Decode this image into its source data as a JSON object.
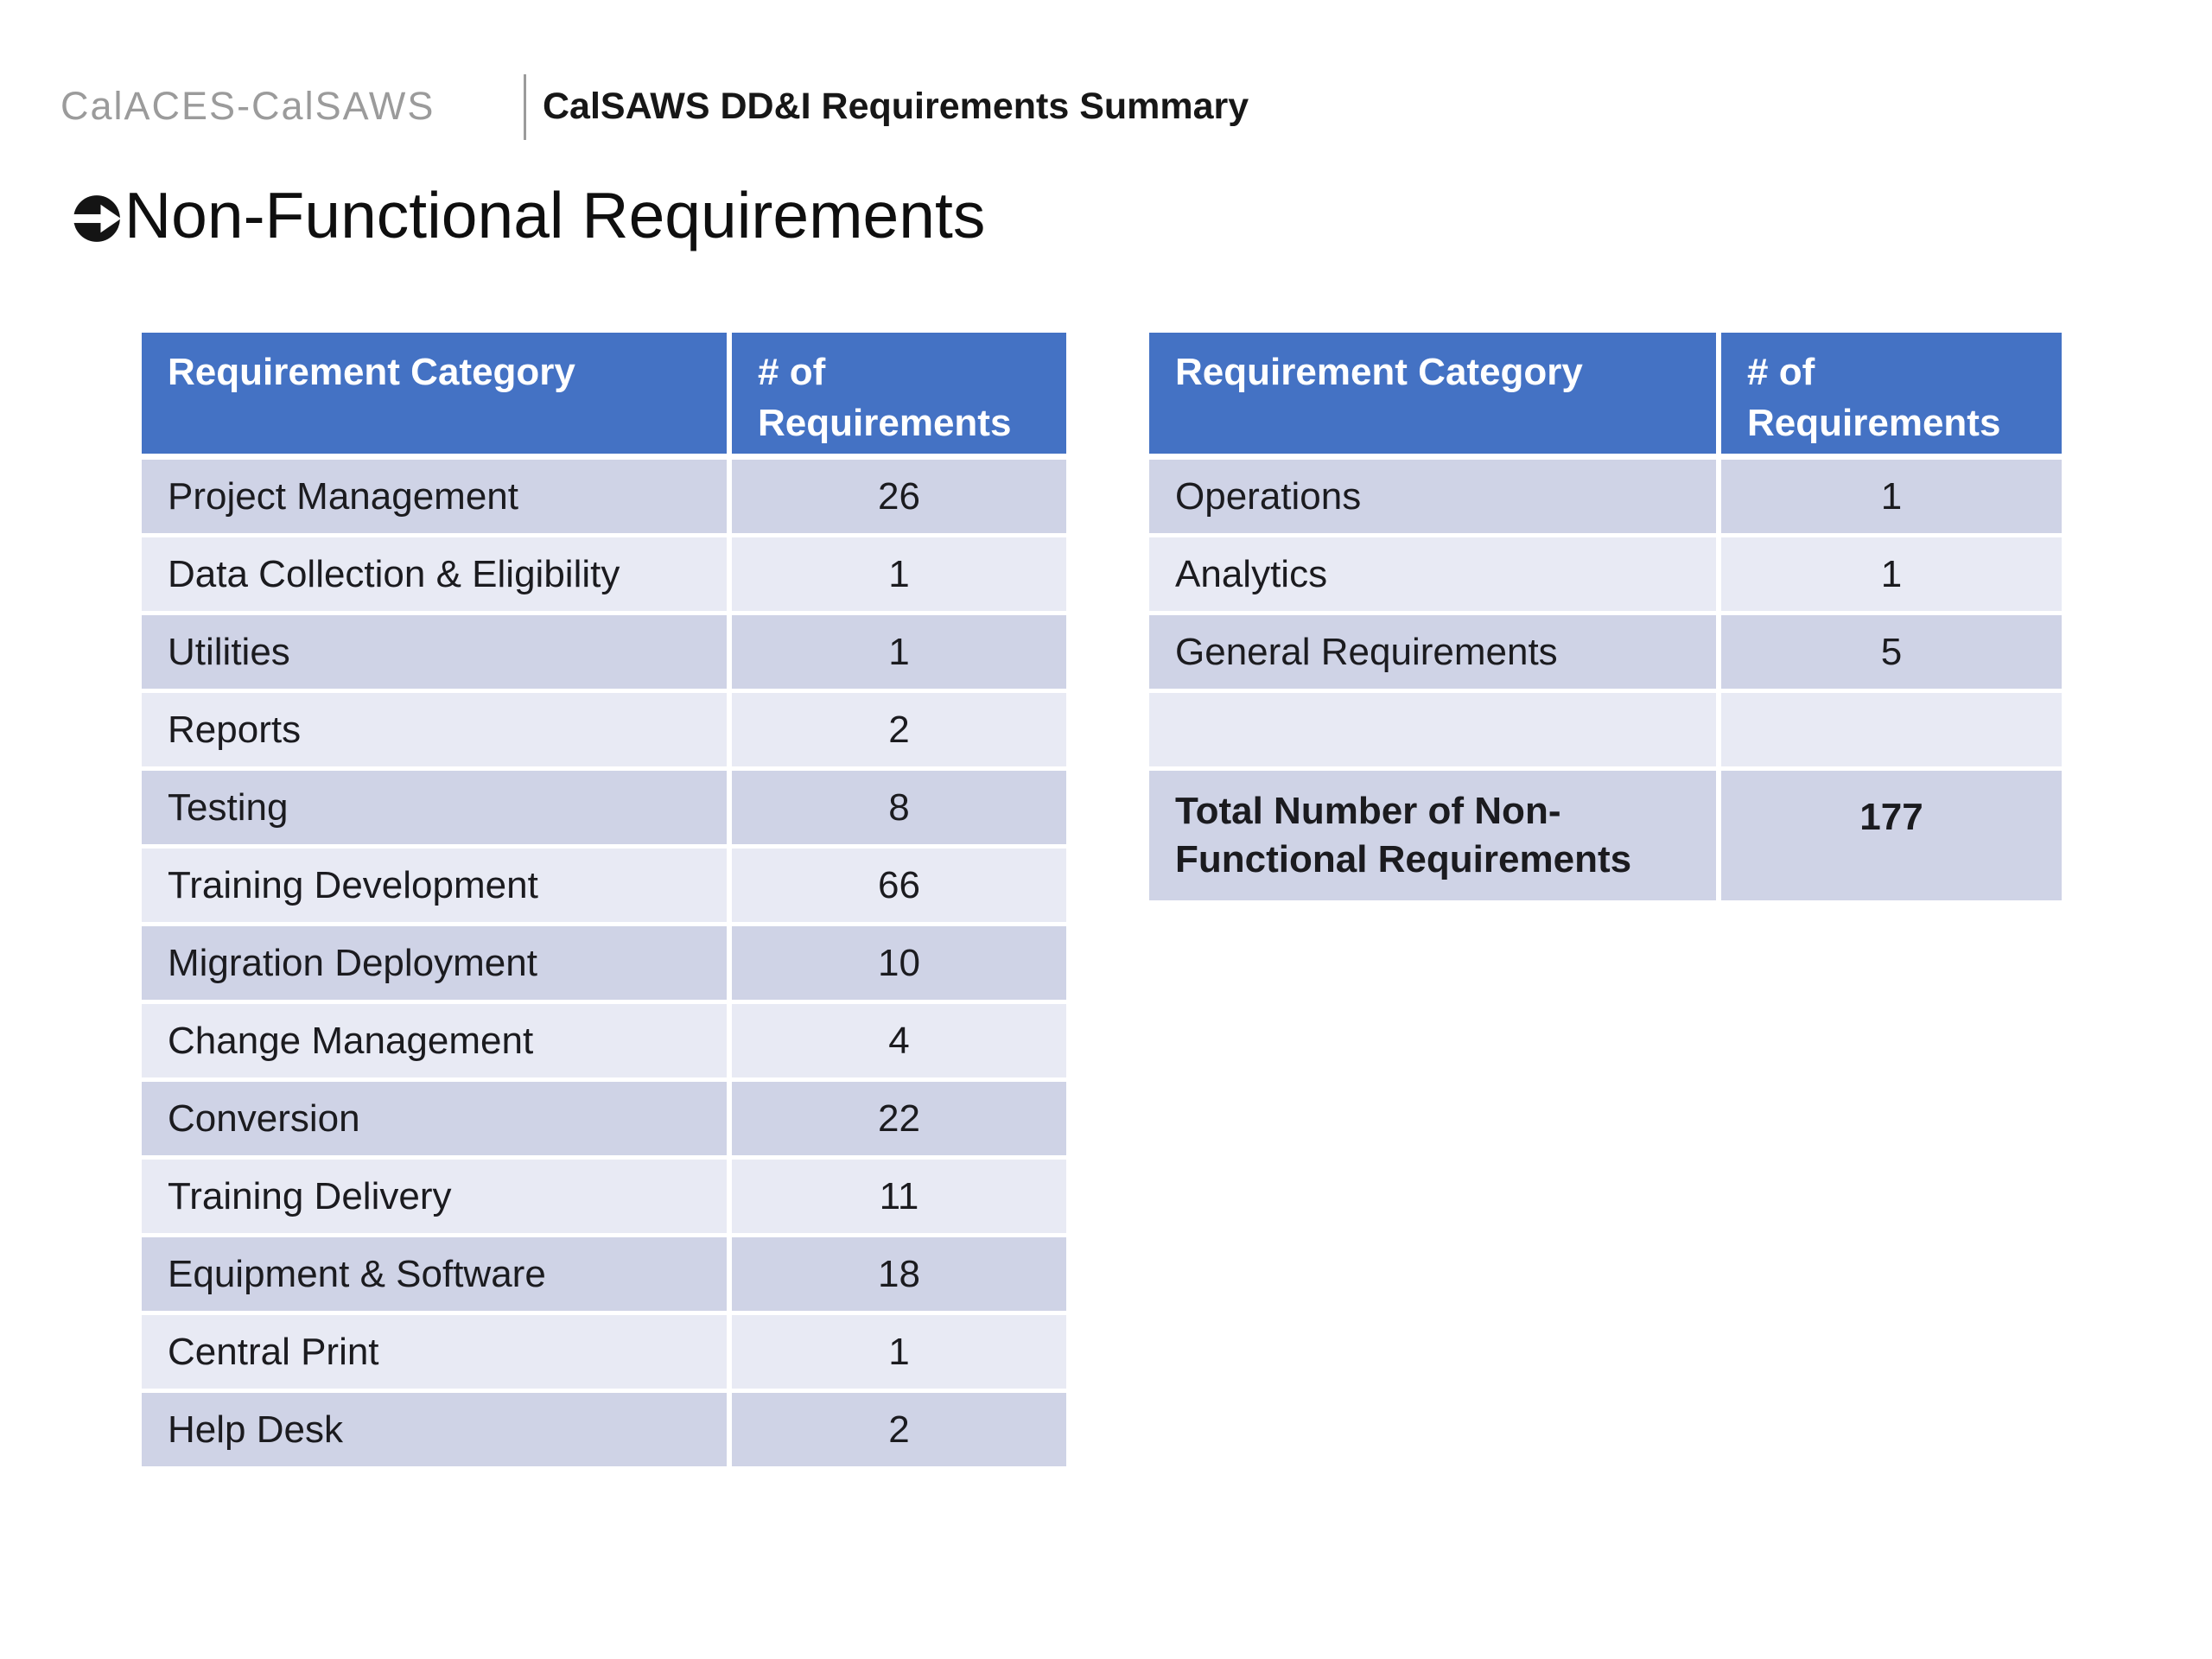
{
  "header": {
    "brand": "CalACES-CalSAWS",
    "title": "CalSAWS DD&I Requirements Summary"
  },
  "slide": {
    "title": "Non-Functional Requirements",
    "title_icon": "circled-right-arrow"
  },
  "columns": {
    "category": "Requirement Category",
    "count": "# of Requirements"
  },
  "left_table": {
    "rows": [
      {
        "category": "Project Management",
        "count": "26"
      },
      {
        "category": "Data Collection & Eligibility",
        "count": "1"
      },
      {
        "category": "Utilities",
        "count": "1"
      },
      {
        "category": "Reports",
        "count": "2"
      },
      {
        "category": "Testing",
        "count": "8"
      },
      {
        "category": "Training Development",
        "count": "66"
      },
      {
        "category": "Migration Deployment",
        "count": "10"
      },
      {
        "category": "Change Management",
        "count": "4"
      },
      {
        "category": "Conversion",
        "count": "22"
      },
      {
        "category": "Training Delivery",
        "count": "11"
      },
      {
        "category": "Equipment & Software",
        "count": "18"
      },
      {
        "category": "Central Print",
        "count": "1"
      },
      {
        "category": "Help Desk",
        "count": "2"
      }
    ]
  },
  "right_table": {
    "rows": [
      {
        "category": "Operations",
        "count": "1"
      },
      {
        "category": "Analytics",
        "count": "1"
      },
      {
        "category": "General Requirements",
        "count": "5"
      },
      {
        "category": "",
        "count": "",
        "empty": true
      },
      {
        "category": "Total Number of Non-Functional Requirements",
        "count": "177",
        "total": true
      }
    ]
  },
  "colors": {
    "header_fill": "#4472c4",
    "band_dark": "#cfd3e6",
    "band_light": "#e8eaf4",
    "header_text": "#ffffff",
    "body_text": "#1b1b1f",
    "brand_gray": "#9b9b9b"
  }
}
